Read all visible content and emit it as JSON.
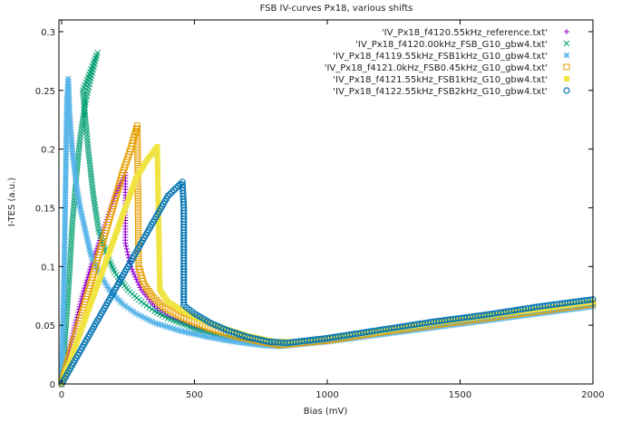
{
  "chart_data": {
    "type": "scatter",
    "title": "FSB IV-curves Px18, various shifts",
    "xlabel": "Bias (mV)",
    "ylabel": "I-TES (a.u.)",
    "xlim": [
      -10,
      2000
    ],
    "ylim": [
      0,
      0.31
    ],
    "xticks": [
      0,
      500,
      1000,
      1500,
      2000
    ],
    "yticks": [
      0,
      0.05,
      0.1,
      0.15,
      0.2,
      0.25,
      0.3
    ],
    "grid": false,
    "legend_position": "top-right",
    "series": [
      {
        "name": "'IV_Px18_f4120.55kHz_reference.txt'",
        "color": "#9400d3",
        "marker": "plus",
        "points": [
          [
            0,
            0
          ],
          [
            20,
            0.02
          ],
          [
            50,
            0.05
          ],
          [
            80,
            0.077
          ],
          [
            110,
            0.1
          ],
          [
            140,
            0.12
          ],
          [
            170,
            0.14
          ],
          [
            200,
            0.16
          ],
          [
            240,
            0.18
          ],
          [
            240,
            0.12
          ],
          [
            260,
            0.1
          ],
          [
            300,
            0.08
          ],
          [
            350,
            0.066
          ],
          [
            400,
            0.058
          ],
          [
            500,
            0.048
          ],
          [
            600,
            0.042
          ],
          [
            700,
            0.037
          ],
          [
            800,
            0.034
          ],
          [
            1000,
            0.038
          ],
          [
            1200,
            0.045
          ],
          [
            1400,
            0.052
          ],
          [
            1600,
            0.058
          ],
          [
            1800,
            0.064
          ],
          [
            2000,
            0.069
          ]
        ]
      },
      {
        "name": "'IV_Px18_f4120.00kHz_FSB_G10_gbw4.txt'",
        "color": "#009e73",
        "marker": "x",
        "points": [
          [
            0,
            0
          ],
          [
            10,
            0.03
          ],
          [
            20,
            0.06
          ],
          [
            30,
            0.095
          ],
          [
            40,
            0.135
          ],
          [
            55,
            0.175
          ],
          [
            70,
            0.21
          ],
          [
            90,
            0.24
          ],
          [
            110,
            0.26
          ],
          [
            135,
            0.282
          ],
          [
            80,
            0.25
          ],
          [
            100,
            0.2
          ],
          [
            120,
            0.16
          ],
          [
            140,
            0.13
          ],
          [
            170,
            0.11
          ],
          [
            200,
            0.095
          ],
          [
            250,
            0.08
          ],
          [
            300,
            0.07
          ],
          [
            350,
            0.062
          ],
          [
            400,
            0.056
          ],
          [
            500,
            0.047
          ],
          [
            600,
            0.041
          ],
          [
            700,
            0.036
          ],
          [
            800,
            0.033
          ],
          [
            1000,
            0.037
          ],
          [
            1200,
            0.044
          ],
          [
            1400,
            0.051
          ],
          [
            1600,
            0.057
          ],
          [
            1800,
            0.063
          ],
          [
            2000,
            0.068
          ]
        ]
      },
      {
        "name": "'IV_Px18_f4119.55kHz_FSB1kHz_G10_gbw4.txt'",
        "color": "#56b4e9",
        "marker": "star",
        "points": [
          [
            0,
            0
          ],
          [
            5,
            0.05
          ],
          [
            10,
            0.1
          ],
          [
            15,
            0.17
          ],
          [
            20,
            0.24
          ],
          [
            25,
            0.26
          ],
          [
            30,
            0.23
          ],
          [
            40,
            0.2
          ],
          [
            55,
            0.17
          ],
          [
            70,
            0.15
          ],
          [
            90,
            0.13
          ],
          [
            110,
            0.11
          ],
          [
            140,
            0.095
          ],
          [
            180,
            0.08
          ],
          [
            230,
            0.068
          ],
          [
            280,
            0.06
          ],
          [
            350,
            0.052
          ],
          [
            450,
            0.045
          ],
          [
            550,
            0.04
          ],
          [
            650,
            0.036
          ],
          [
            750,
            0.033
          ],
          [
            820,
            0.032
          ],
          [
            1000,
            0.036
          ],
          [
            1200,
            0.042
          ],
          [
            1400,
            0.048
          ],
          [
            1600,
            0.054
          ],
          [
            1800,
            0.06
          ],
          [
            2000,
            0.066
          ]
        ]
      },
      {
        "name": "'IV_Px18_f4121.0kHz_FSB0.45kHz_G10_gbw4.txt'",
        "color": "#e69f00",
        "marker": "square",
        "points": [
          [
            0,
            0
          ],
          [
            20,
            0.017
          ],
          [
            50,
            0.04
          ],
          [
            80,
            0.063
          ],
          [
            110,
            0.086
          ],
          [
            140,
            0.11
          ],
          [
            170,
            0.133
          ],
          [
            200,
            0.156
          ],
          [
            230,
            0.18
          ],
          [
            260,
            0.2
          ],
          [
            285,
            0.22
          ],
          [
            290,
            0.1
          ],
          [
            310,
            0.085
          ],
          [
            340,
            0.075
          ],
          [
            380,
            0.066
          ],
          [
            450,
            0.057
          ],
          [
            550,
            0.048
          ],
          [
            650,
            0.041
          ],
          [
            750,
            0.036
          ],
          [
            820,
            0.033
          ],
          [
            1000,
            0.037
          ],
          [
            1200,
            0.044
          ],
          [
            1400,
            0.05
          ],
          [
            1600,
            0.056
          ],
          [
            1800,
            0.062
          ],
          [
            2000,
            0.068
          ]
        ]
      },
      {
        "name": "'IV_Px18_f4121.55kHz_FSB1kHz_G10_gbw4.txt'",
        "color": "#f0e442",
        "marker": "filled-square",
        "points": [
          [
            0,
            0
          ],
          [
            40,
            0.025
          ],
          [
            80,
            0.05
          ],
          [
            120,
            0.075
          ],
          [
            160,
            0.1
          ],
          [
            200,
            0.125
          ],
          [
            240,
            0.15
          ],
          [
            280,
            0.175
          ],
          [
            320,
            0.19
          ],
          [
            360,
            0.202
          ],
          [
            370,
            0.08
          ],
          [
            400,
            0.07
          ],
          [
            450,
            0.063
          ],
          [
            520,
            0.055
          ],
          [
            600,
            0.048
          ],
          [
            700,
            0.041
          ],
          [
            800,
            0.036
          ],
          [
            900,
            0.036
          ],
          [
            1000,
            0.039
          ],
          [
            1200,
            0.045
          ],
          [
            1400,
            0.052
          ],
          [
            1600,
            0.058
          ],
          [
            1800,
            0.064
          ],
          [
            2000,
            0.07
          ]
        ]
      },
      {
        "name": "'IV_Px18_f4122.55kHz_FSB2kHz_G10_gbw4.txt'",
        "color": "#0072b2",
        "marker": "circle",
        "points": [
          [
            0,
            0
          ],
          [
            50,
            0.02
          ],
          [
            100,
            0.04
          ],
          [
            150,
            0.06
          ],
          [
            200,
            0.08
          ],
          [
            250,
            0.1
          ],
          [
            300,
            0.12
          ],
          [
            350,
            0.14
          ],
          [
            400,
            0.16
          ],
          [
            455,
            0.172
          ],
          [
            460,
            0.15
          ],
          [
            460,
            0.067
          ],
          [
            500,
            0.06
          ],
          [
            560,
            0.052
          ],
          [
            620,
            0.046
          ],
          [
            700,
            0.04
          ],
          [
            780,
            0.036
          ],
          [
            850,
            0.035
          ],
          [
            1000,
            0.039
          ],
          [
            1200,
            0.046
          ],
          [
            1400,
            0.053
          ],
          [
            1600,
            0.059
          ],
          [
            1800,
            0.066
          ],
          [
            2000,
            0.072
          ]
        ]
      }
    ]
  }
}
